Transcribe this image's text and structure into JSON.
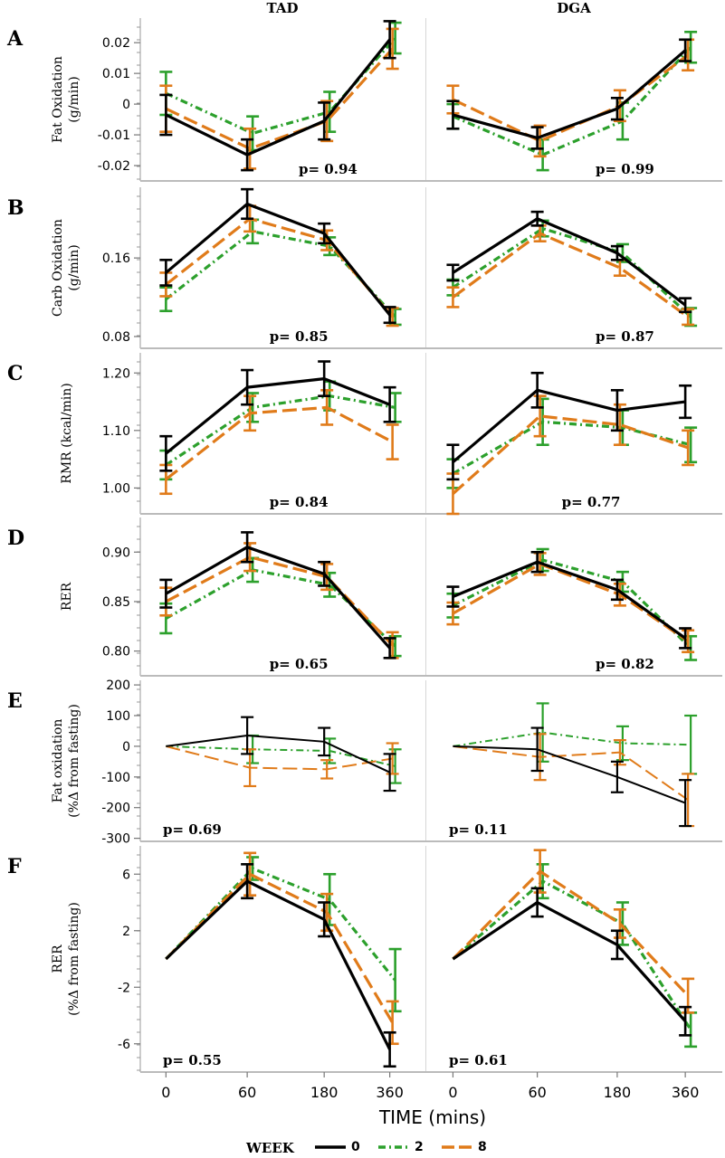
{
  "column_titles": [
    "TAD",
    "DGA"
  ],
  "x_ticks": [
    "0",
    "60",
    "180",
    "360"
  ],
  "xlabel": "TIME (mins)",
  "legend": {
    "title": "WEEK",
    "entries": [
      {
        "label": "0",
        "color": "#000000",
        "style": "solid"
      },
      {
        "label": "2",
        "color": "#2ca02c",
        "style": "dash-dot"
      },
      {
        "label": "8",
        "color": "#e07b1a",
        "style": "dashed"
      }
    ]
  },
  "colors": {
    "week0": "#000000",
    "week2": "#2ca02c",
    "week8": "#e07b1a",
    "frame": "#bbbbbb"
  },
  "chart_data": [
    {
      "type": "line",
      "letter": "A",
      "ylabel": [
        "Fat Oxidation",
        "(g/min)"
      ],
      "ylim": [
        -0.025,
        0.028
      ],
      "yticks": [
        -0.02,
        -0.01,
        0,
        0.01,
        0.02
      ],
      "tick_labels": [
        "-0.02",
        "-0.01",
        "0",
        "0.01",
        "0.02"
      ],
      "x": [
        "0",
        "60",
        "180",
        "360"
      ],
      "line_width": "thick",
      "panels": [
        {
          "column": "TAD",
          "p_label": "p= 0.94",
          "p_pos": "bottom-right",
          "series": [
            {
              "name": "0",
              "values": [
                -0.0035,
                -0.0165,
                -0.0055,
                0.021
              ],
              "err": [
                0.0065,
                0.005,
                0.006,
                0.006
              ]
            },
            {
              "name": "2",
              "values": [
                0.0035,
                -0.0095,
                -0.0025,
                0.0215
              ],
              "err": [
                0.007,
                0.0055,
                0.0065,
                0.005
              ]
            },
            {
              "name": "8",
              "values": [
                -0.0015,
                -0.0145,
                -0.0055,
                0.018
              ],
              "err": [
                0.0075,
                0.0065,
                0.0065,
                0.0065
              ]
            }
          ]
        },
        {
          "column": "DGA",
          "p_label": "p= 0.99",
          "p_pos": "bottom-right",
          "series": [
            {
              "name": "0",
              "values": [
                -0.0035,
                -0.011,
                -0.0015,
                0.0175
              ],
              "err": [
                0.0045,
                0.0035,
                0.0035,
                0.0035
              ]
            },
            {
              "name": "2",
              "values": [
                -0.004,
                -0.0165,
                -0.0055,
                0.0185
              ],
              "err": [
                0.004,
                0.005,
                0.006,
                0.005
              ]
            },
            {
              "name": "8",
              "values": [
                0.0015,
                -0.012,
                -0.0005,
                0.016
              ],
              "err": [
                0.0045,
                0.005,
                0.005,
                0.005
              ]
            }
          ]
        }
      ]
    },
    {
      "type": "line",
      "letter": "B",
      "ylabel": [
        "Carb Oxidation",
        "(g/min)"
      ],
      "ylim": [
        0.068,
        0.232
      ],
      "yticks": [
        0.08,
        0.16
      ],
      "tick_labels": [
        "0.08",
        "0.16"
      ],
      "x": [
        "0",
        "60",
        "180",
        "360"
      ],
      "line_width": "thick",
      "panels": [
        {
          "column": "TAD",
          "p_label": "p= 0.85",
          "p_pos": "bottom-center",
          "series": [
            {
              "name": "0",
              "values": [
                0.145,
                0.215,
                0.185,
                0.102
              ],
              "err": [
                0.013,
                0.015,
                0.01,
                0.008
              ]
            },
            {
              "name": "2",
              "values": [
                0.118,
                0.187,
                0.172,
                0.1
              ],
              "err": [
                0.012,
                0.012,
                0.009,
                0.008
              ]
            },
            {
              "name": "8",
              "values": [
                0.133,
                0.2,
                0.178,
                0.1
              ],
              "err": [
                0.012,
                0.013,
                0.01,
                0.009
              ]
            }
          ]
        },
        {
          "column": "DGA",
          "p_label": "p= 0.87",
          "p_pos": "bottom-right",
          "series": [
            {
              "name": "0",
              "values": [
                0.145,
                0.2,
                0.165,
                0.112
              ],
              "err": [
                0.008,
                0.007,
                0.007,
                0.007
              ]
            },
            {
              "name": "2",
              "values": [
                0.13,
                0.19,
                0.165,
                0.1
              ],
              "err": [
                0.008,
                0.008,
                0.009,
                0.009
              ]
            },
            {
              "name": "8",
              "values": [
                0.12,
                0.185,
                0.15,
                0.1
              ],
              "err": [
                0.01,
                0.008,
                0.008,
                0.008
              ]
            }
          ]
        }
      ]
    },
    {
      "type": "line",
      "letter": "C",
      "ylabel": [
        "RMR (kcal/min)"
      ],
      "ylim": [
        0.955,
        1.235
      ],
      "yticks": [
        1.0,
        1.1,
        1.2
      ],
      "tick_labels": [
        "1.00",
        "1.10",
        "1.20"
      ],
      "x": [
        "0",
        "60",
        "180",
        "360"
      ],
      "line_width": "thick",
      "panels": [
        {
          "column": "TAD",
          "p_label": "p= 0.84",
          "p_pos": "bottom-center",
          "series": [
            {
              "name": "0",
              "values": [
                1.06,
                1.175,
                1.19,
                1.145
              ],
              "err": [
                0.03,
                0.03,
                0.03,
                0.03
              ]
            },
            {
              "name": "2",
              "values": [
                1.04,
                1.14,
                1.16,
                1.14
              ],
              "err": [
                0.025,
                0.025,
                0.025,
                0.025
              ]
            },
            {
              "name": "8",
              "values": [
                1.015,
                1.13,
                1.14,
                1.08
              ],
              "err": [
                0.025,
                0.03,
                0.03,
                0.03
              ]
            }
          ]
        },
        {
          "column": "DGA",
          "p_label": "p= 0.77",
          "p_pos": "bottom-center",
          "series": [
            {
              "name": "0",
              "values": [
                1.045,
                1.17,
                1.135,
                1.15
              ],
              "err": [
                0.03,
                0.03,
                0.035,
                0.028
              ]
            },
            {
              "name": "2",
              "values": [
                1.025,
                1.115,
                1.105,
                1.075
              ],
              "err": [
                0.025,
                0.04,
                0.03,
                0.03
              ]
            },
            {
              "name": "8",
              "values": [
                0.99,
                1.125,
                1.11,
                1.07
              ],
              "err": [
                0.035,
                0.035,
                0.035,
                0.03
              ]
            }
          ]
        }
      ]
    },
    {
      "type": "line",
      "letter": "D",
      "ylabel": [
        "RER"
      ],
      "ylim": [
        0.775,
        0.935
      ],
      "yticks": [
        0.8,
        0.85,
        0.9
      ],
      "tick_labels": [
        "0.80",
        "0.85",
        "0.90"
      ],
      "x": [
        "0",
        "60",
        "180",
        "360"
      ],
      "line_width": "thick",
      "panels": [
        {
          "column": "TAD",
          "p_label": "p= 0.65",
          "p_pos": "bottom-center",
          "series": [
            {
              "name": "0",
              "values": [
                0.858,
                0.905,
                0.878,
                0.803
              ],
              "err": [
                0.014,
                0.015,
                0.012,
                0.01
              ]
            },
            {
              "name": "2",
              "values": [
                0.833,
                0.882,
                0.867,
                0.805
              ],
              "err": [
                0.015,
                0.012,
                0.012,
                0.01
              ]
            },
            {
              "name": "8",
              "values": [
                0.85,
                0.895,
                0.875,
                0.806
              ],
              "err": [
                0.014,
                0.014,
                0.013,
                0.013
              ]
            }
          ]
        },
        {
          "column": "DGA",
          "p_label": "p= 0.82",
          "p_pos": "bottom-right",
          "series": [
            {
              "name": "0",
              "values": [
                0.855,
                0.89,
                0.862,
                0.813
              ],
              "err": [
                0.01,
                0.01,
                0.01,
                0.01
              ]
            },
            {
              "name": "2",
              "values": [
                0.846,
                0.892,
                0.87,
                0.803
              ],
              "err": [
                0.012,
                0.011,
                0.01,
                0.012
              ]
            },
            {
              "name": "8",
              "values": [
                0.838,
                0.888,
                0.857,
                0.81
              ],
              "err": [
                0.011,
                0.011,
                0.011,
                0.011
              ]
            }
          ]
        }
      ]
    },
    {
      "type": "line",
      "letter": "E",
      "ylabel": [
        "Fat oxidation",
        "(%Δ from fasting)"
      ],
      "ylim": [
        -310,
        215
      ],
      "yticks": [
        -300,
        -200,
        -100,
        0,
        100,
        200
      ],
      "tick_labels": [
        "-300",
        "-200",
        "-100",
        "0",
        "100",
        "200"
      ],
      "x": [
        "0",
        "60",
        "180",
        "360"
      ],
      "line_width": "thin",
      "panels": [
        {
          "column": "TAD",
          "p_label": "p= 0.69",
          "p_pos": "bottom-left",
          "series": [
            {
              "name": "0",
              "values": [
                0,
                35,
                15,
                -85
              ],
              "err": [
                0,
                60,
                45,
                60
              ]
            },
            {
              "name": "2",
              "values": [
                0,
                -10,
                -15,
                -65
              ],
              "err": [
                0,
                45,
                40,
                55
              ]
            },
            {
              "name": "8",
              "values": [
                0,
                -70,
                -75,
                -40
              ],
              "err": [
                0,
                60,
                30,
                50
              ]
            }
          ]
        },
        {
          "column": "DGA",
          "p_label": "p= 0.11",
          "p_pos": "bottom-left",
          "series": [
            {
              "name": "0",
              "values": [
                0,
                -10,
                -100,
                -185
              ],
              "err": [
                0,
                70,
                50,
                75
              ]
            },
            {
              "name": "2",
              "values": [
                0,
                45,
                10,
                5
              ],
              "err": [
                0,
                95,
                55,
                95
              ]
            },
            {
              "name": "8",
              "values": [
                0,
                -35,
                -20,
                -175
              ],
              "err": [
                0,
                75,
                40,
                85
              ]
            }
          ]
        }
      ]
    },
    {
      "type": "line",
      "letter": "F",
      "ylabel": [
        "RER",
        "(%Δ from fasting)"
      ],
      "ylim": [
        -8,
        8
      ],
      "yticks": [
        -6,
        -2,
        2,
        6
      ],
      "tick_labels": [
        "-6",
        "-2",
        "2",
        "6"
      ],
      "x": [
        "0",
        "60",
        "180",
        "360"
      ],
      "line_width": "thick",
      "panels": [
        {
          "column": "TAD",
          "p_label": "p= 0.55",
          "p_pos": "bottom-left",
          "series": [
            {
              "name": "0",
              "values": [
                0,
                5.5,
                2.8,
                -6.4
              ],
              "err": [
                0,
                1.2,
                1.2,
                1.2
              ]
            },
            {
              "name": "2",
              "values": [
                0,
                6.4,
                4.2,
                -1.5
              ],
              "err": [
                0,
                0.8,
                1.8,
                2.2
              ]
            },
            {
              "name": "8",
              "values": [
                0,
                6.0,
                3.3,
                -4.5
              ],
              "err": [
                0,
                1.5,
                1.3,
                1.5
              ]
            }
          ]
        },
        {
          "column": "DGA",
          "p_label": "p= 0.61",
          "p_pos": "bottom-left",
          "series": [
            {
              "name": "0",
              "values": [
                0,
                4.0,
                1.0,
                -4.4
              ],
              "err": [
                0,
                1.0,
                1.0,
                1.0
              ]
            },
            {
              "name": "2",
              "values": [
                0,
                5.5,
                2.5,
                -5.0
              ],
              "err": [
                0,
                1.2,
                1.5,
                1.2
              ]
            },
            {
              "name": "8",
              "values": [
                0,
                6.2,
                2.5,
                -2.6
              ],
              "err": [
                0,
                1.5,
                1.0,
                1.2
              ]
            }
          ]
        }
      ]
    }
  ]
}
